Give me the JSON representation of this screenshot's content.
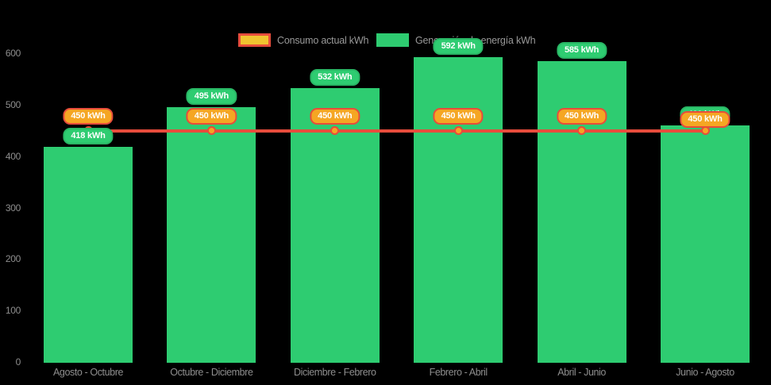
{
  "chart_data": {
    "type": "bar",
    "title": "",
    "categories": [
      "Agosto - Octubre",
      "Octubre - Diciembre",
      "Diciembre - Febrero",
      "Febrero - Abril",
      "Abril - Junio",
      "Junio - Agosto"
    ],
    "series": [
      {
        "name": "Generación de energía kWh",
        "type": "bar",
        "color": "#2ecc71",
        "badge_border": "#29b765",
        "values": [
          418,
          495,
          532,
          592,
          585,
          460
        ],
        "labels": [
          "418 kWh",
          "495 kWh",
          "532 kWh",
          "592 kWh",
          "585 kWh",
          "460 kWh"
        ]
      },
      {
        "name": "Consumo actual kWh",
        "type": "line",
        "line_color": "#e74c3c",
        "marker_fill": "#f5a623",
        "marker_border": "#e74c3c",
        "badge_fill": "#f5a623",
        "badge_border": "#e74c3c",
        "values": [
          450,
          450,
          450,
          450,
          450,
          450
        ],
        "labels": [
          "450 kWh",
          "450 kWh",
          "450 kWh",
          "450 kWh",
          "450 kWh",
          "450 kWh"
        ]
      }
    ],
    "yticks": [
      "0",
      "100",
      "200",
      "300",
      "400",
      "500",
      "600"
    ],
    "ylim": [
      0,
      620
    ],
    "grid": false,
    "background": "#000000",
    "axis_label_color": "#8e8e8e",
    "legend_position": "top",
    "legend": {
      "items": [
        {
          "label": "Consumo actual kWh",
          "swatch_fill": "#f0c330",
          "swatch_border": "#e74c3c"
        },
        {
          "label": "Generación de energía kWh",
          "swatch_fill": "#2ecc71",
          "swatch_border": "#2ecc71"
        }
      ]
    }
  }
}
